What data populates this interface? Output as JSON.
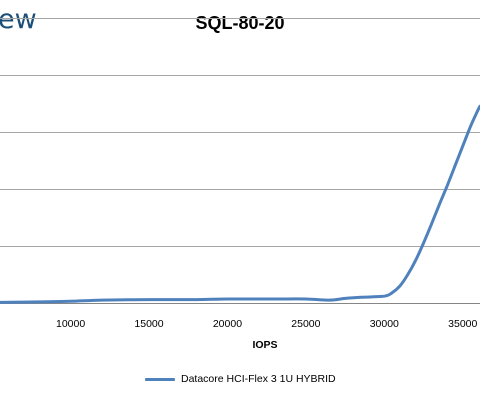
{
  "header": {
    "brand": "ew"
  },
  "colors": {
    "series": "#4f81bd",
    "grid": "#a6a6a6",
    "axis": "#868686"
  },
  "chart_data": {
    "type": "line",
    "title": "SQL-80-20",
    "xlabel": "IOPS",
    "ylabel": "",
    "xlim": [
      5500,
      36100
    ],
    "ylim": [
      0,
      5.05
    ],
    "grid": true,
    "legend_position": "bottom",
    "x_ticks": [
      10000,
      15000,
      20000,
      25000,
      30000,
      35000
    ],
    "x_tick_labels": [
      "10000",
      "15000",
      "20000",
      "25000",
      "30000",
      "35000"
    ],
    "y_gridlines": [
      1,
      2,
      3,
      4,
      5
    ],
    "series": [
      {
        "name": "Datacore HCI-Flex 3 1U HYBRID",
        "x": [
          5500,
          8000,
          10000,
          12000,
          15000,
          18000,
          20000,
          23000,
          25000,
          26500,
          27500,
          28500,
          30000,
          30500,
          31000,
          31500,
          32000,
          32500,
          33000,
          33500,
          34000,
          34500,
          35000,
          35500,
          36000,
          36100
        ],
        "y": [
          0.01,
          0.02,
          0.03,
          0.05,
          0.06,
          0.06,
          0.07,
          0.07,
          0.07,
          0.05,
          0.08,
          0.1,
          0.12,
          0.18,
          0.3,
          0.5,
          0.75,
          1.05,
          1.38,
          1.72,
          2.05,
          2.4,
          2.75,
          3.1,
          3.4,
          3.45
        ]
      }
    ]
  }
}
